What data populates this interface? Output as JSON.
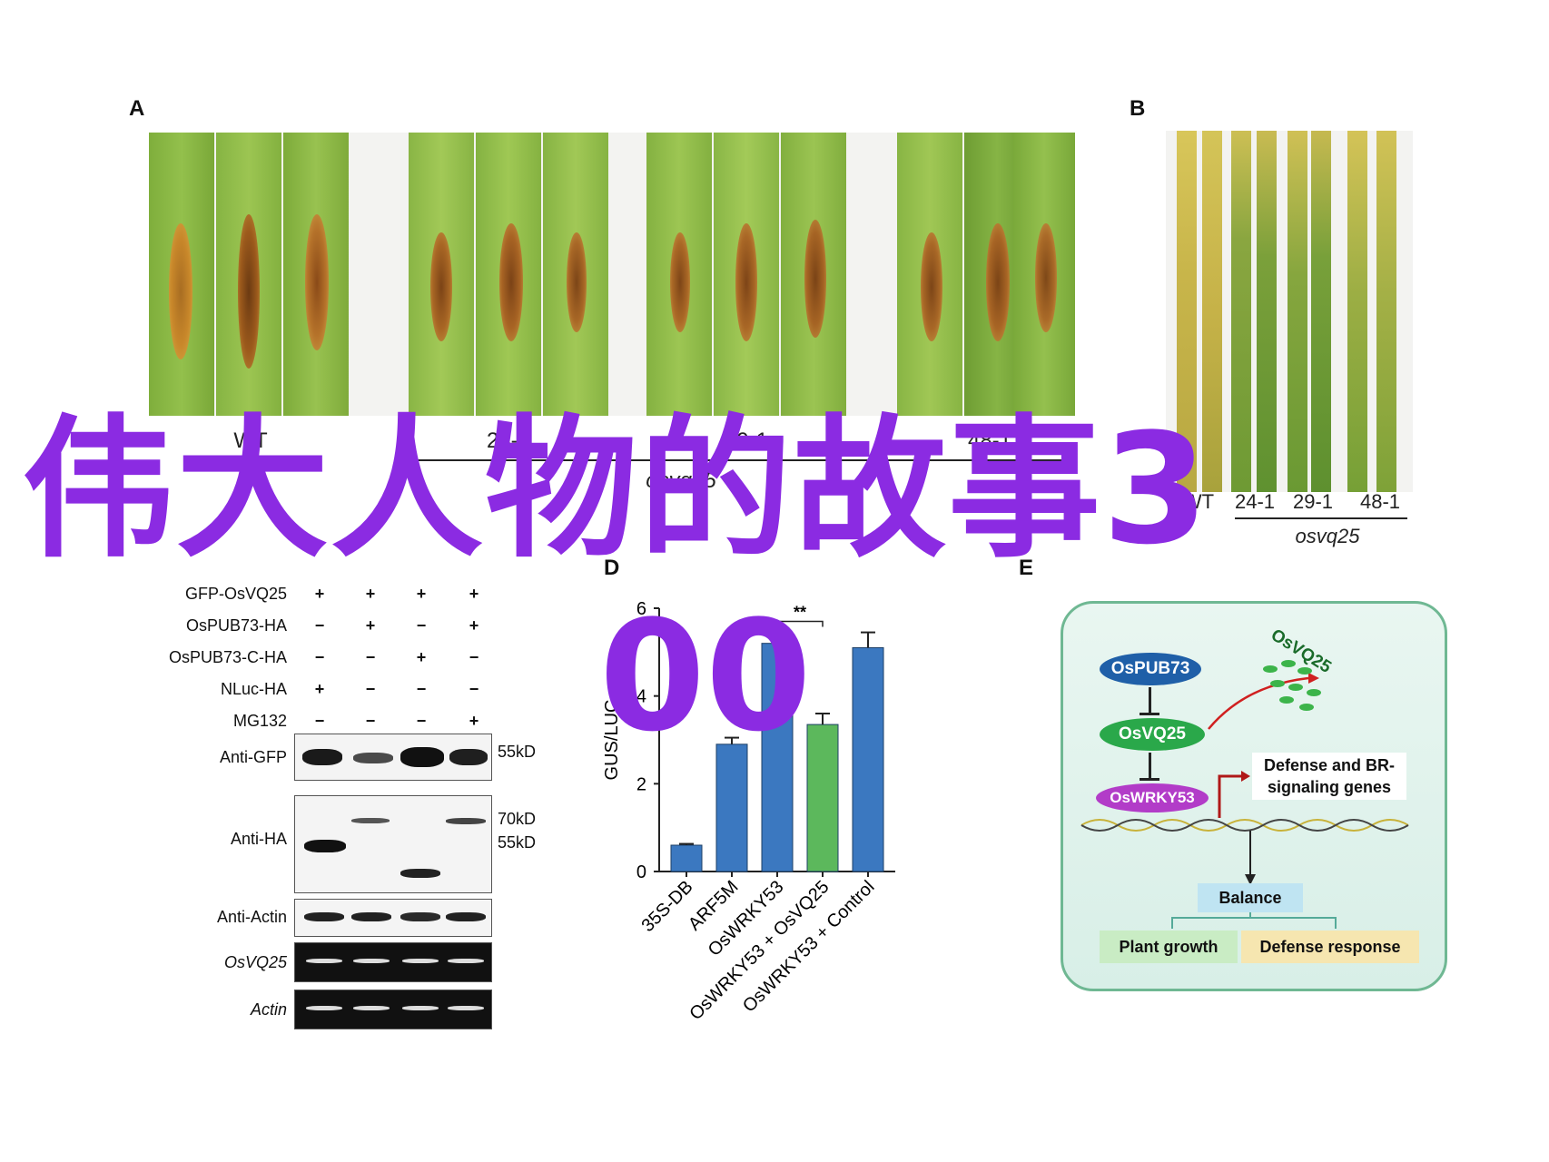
{
  "panels": {
    "A": "A",
    "B": "B",
    "D": "D",
    "E": "E"
  },
  "panel_a": {
    "group_labels": [
      "WT",
      "24-1",
      "29-1",
      "48-1"
    ],
    "genotype": "osvq25"
  },
  "panel_b": {
    "group_labels": [
      "WT",
      "24-1",
      "29-1",
      "48-1"
    ],
    "genotype": "osvq25"
  },
  "panel_c": {
    "rows": [
      {
        "label": "GFP-OsVQ25",
        "signs": [
          "+",
          "+",
          "+",
          "+"
        ]
      },
      {
        "label": "OsPUB73-HA",
        "signs": [
          "−",
          "+",
          "−",
          "+"
        ]
      },
      {
        "label": "OsPUB73-C-HA",
        "signs": [
          "−",
          "−",
          "+",
          "−"
        ]
      },
      {
        "label": "NLuc-HA",
        "signs": [
          "+",
          "−",
          "−",
          "−"
        ]
      },
      {
        "label": "MG132",
        "signs": [
          "−",
          "−",
          "−",
          "+"
        ]
      }
    ],
    "blots": [
      {
        "label": "Anti-GFP",
        "markers": [
          "55kD"
        ]
      },
      {
        "label": "Anti-HA",
        "markers": [
          "70kD",
          "55kD"
        ]
      },
      {
        "label": "Anti-Actin",
        "markers": []
      },
      {
        "label": "OsVQ25",
        "markers": []
      },
      {
        "label": "Actin",
        "markers": []
      }
    ]
  },
  "chart_data": {
    "type": "bar",
    "ylabel": "GUS/LUC",
    "ylim": [
      0,
      6
    ],
    "yticks": [
      0,
      2,
      4,
      6
    ],
    "categories": [
      "35S-DB",
      "ARF5M",
      "OsWRKY53",
      "OsWRKY53 + OsVQ25",
      "OsWRKY53 + Control"
    ],
    "values": [
      0.6,
      2.9,
      5.2,
      3.35,
      5.1
    ],
    "errors": [
      0.03,
      0.15,
      0.08,
      0.25,
      0.35
    ],
    "colors": [
      "#3b78c0",
      "#3b78c0",
      "#3b78c0",
      "#5cb85c",
      "#3b78c0"
    ],
    "significance": {
      "between": [
        2,
        3
      ],
      "label": "**"
    }
  },
  "panel_e": {
    "nodes": {
      "pub": "OsPUB73",
      "vq": "OsVQ25",
      "wrky": "OsWRKY53",
      "vq_free": "OsVQ25",
      "genes_line1": "Defense and BR-",
      "genes_line2": "signaling genes",
      "balance": "Balance",
      "growth": "Plant growth",
      "defense": "Defense response"
    }
  },
  "overlay_text": {
    "line1": "伟大人物的故事3",
    "line2": "00"
  },
  "colors": {
    "overlay": "#8b2be2",
    "bar_blue": "#3b78c0",
    "bar_green": "#5cb85c"
  }
}
